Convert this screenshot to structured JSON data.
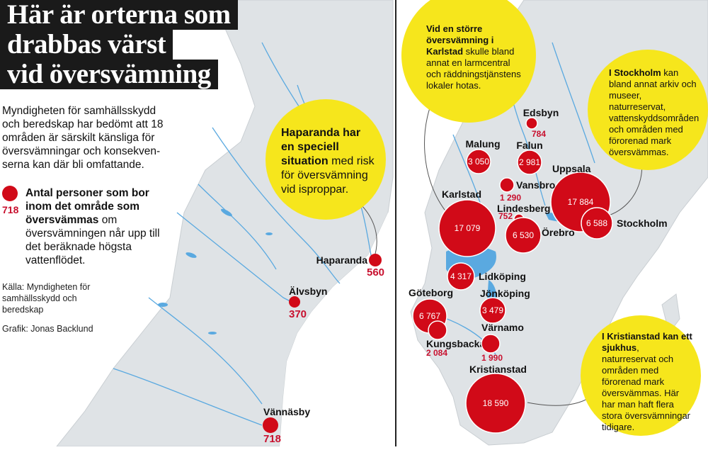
{
  "title_lines": [
    "Här är orterna som",
    "drabbas värst",
    "vid översvämning"
  ],
  "intro": "Myndigheten för samhällsskydd och beredskap har bedömt att 18 områden är särskilt känsliga för översvämningar och konsekven-serna kan där bli omfattande.",
  "legend": {
    "value": "718",
    "text_bold": "Antal personer som bor inom det område som översvämmas",
    "text_rest": " om översvämningen når upp till det beräknade högsta vattenflödet."
  },
  "source": "Källa: Myndigheten för samhällsskydd och beredskap",
  "credit": "Grafik: Jonas Backlund",
  "callouts": {
    "haparanda": {
      "bold": "Haparanda har en speciell situation",
      "rest": " med risk för översvämning vid isproppar."
    },
    "karlstad": {
      "bold": "Vid en större översvämning i Karlstad",
      "rest": " skulle bland annat en larmcentral och räddningstjänstens lokaler hotas."
    },
    "stockholm": {
      "bold": "I Stockholm",
      "rest": " kan bland annat arkiv och museer, naturreservat, vattenskyddsområden och områden med förorenad mark översvämmas."
    },
    "kristianstad": {
      "bold": "I Kristianstad kan ett sjukhus",
      "rest": ", naturreservat och områden med förorenad mark översvämmas. Här har man haft flera stora översvämningar tidigare."
    }
  },
  "places_north": [
    {
      "name": "Haparanda",
      "value": "560"
    },
    {
      "name": "Älvsbyn",
      "value": "370"
    },
    {
      "name": "Vännäsby",
      "value": "718"
    }
  ],
  "places_south": [
    {
      "name": "Edsbyn",
      "value": "784"
    },
    {
      "name": "Malung",
      "value": "3 050"
    },
    {
      "name": "Falun",
      "value": "2 981"
    },
    {
      "name": "Uppsala",
      "value": "17 884"
    },
    {
      "name": "Vansbro",
      "value": "1 290"
    },
    {
      "name": "Lindesberg",
      "value": "752"
    },
    {
      "name": "Karlstad",
      "value": "17 079"
    },
    {
      "name": "Örebro",
      "value": "6 530"
    },
    {
      "name": "Stockholm",
      "value": "6 588"
    },
    {
      "name": "Lidköping",
      "value": "4 317"
    },
    {
      "name": "Jönköping",
      "value": "3 479"
    },
    {
      "name": "Göteborg",
      "value": "6 767"
    },
    {
      "name": "Kungsbacka",
      "value": "2 084"
    },
    {
      "name": "Värnamo",
      "value": "1 990"
    },
    {
      "name": "Kristianstad",
      "value": "18 590"
    }
  ],
  "colors": {
    "marker": "#d10a18",
    "value_text": "#c8102e",
    "callout": "#f6e61c",
    "land": "#dfe3e6",
    "water": "#5aa9e0",
    "title_bg": "#1a1a1a"
  }
}
